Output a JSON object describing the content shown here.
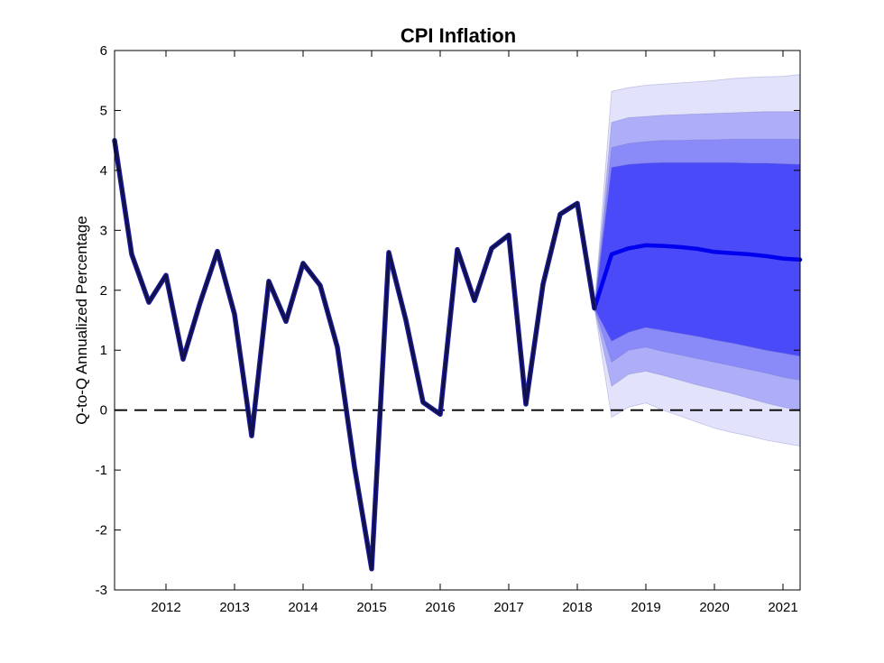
{
  "chart_data": {
    "type": "line",
    "title": "CPI Inflation",
    "xlabel": "",
    "ylabel": "Q-to-Q Annualized Percentage",
    "xlim": [
      2011.25,
      2021.25
    ],
    "ylim": [
      -3,
      6
    ],
    "yticks": [
      -3,
      -2,
      -1,
      0,
      1,
      2,
      3,
      4,
      5,
      6
    ],
    "xticks": [
      2012,
      2013,
      2014,
      2015,
      2016,
      2017,
      2018,
      2019,
      2020,
      2021
    ],
    "grid": false,
    "reference_line": {
      "y": 0,
      "style": "dashed",
      "color": "#000000"
    },
    "colors": {
      "history": "#10104a",
      "forecast": "#0000ee",
      "band_outer": "#e2e2fb",
      "band_3": "#aeaef8",
      "band_2": "#8a8af8",
      "band_inner": "#4a4af8"
    },
    "series": [
      {
        "kind": "history",
        "x": [
          2011.25,
          2011.5,
          2011.75,
          2012.0,
          2012.25,
          2012.5,
          2012.75,
          2013.0,
          2013.25,
          2013.5,
          2013.75,
          2014.0,
          2014.25,
          2014.5,
          2014.75,
          2015.0,
          2015.25,
          2015.5,
          2015.75,
          2016.0,
          2016.25,
          2016.5,
          2016.75,
          2017.0,
          2017.25,
          2017.5,
          2017.75,
          2018.0,
          2018.25
        ],
        "values": [
          4.5,
          2.6,
          1.8,
          2.25,
          0.85,
          1.8,
          2.65,
          1.6,
          -0.43,
          2.15,
          1.48,
          2.45,
          2.08,
          1.05,
          -0.95,
          -2.65,
          2.63,
          1.5,
          0.13,
          -0.07,
          2.68,
          1.83,
          2.7,
          2.92,
          0.1,
          2.1,
          3.27,
          3.45,
          1.7
        ]
      },
      {
        "kind": "forecast",
        "x": [
          2017.75,
          2018.0,
          2018.25,
          2018.5,
          2018.75,
          2019.0,
          2019.25,
          2019.5,
          2019.75,
          2020.0,
          2020.25,
          2020.5,
          2020.75,
          2021.0,
          2021.25
        ],
        "values": [
          3.27,
          3.45,
          1.7,
          2.6,
          2.7,
          2.75,
          2.74,
          2.72,
          2.69,
          2.64,
          2.62,
          2.6,
          2.57,
          2.53,
          2.51
        ]
      }
    ],
    "bands": {
      "x": [
        2018.25,
        2018.5,
        2018.75,
        2019.0,
        2019.25,
        2019.5,
        2019.75,
        2020.0,
        2020.25,
        2020.5,
        2020.75,
        2021.0,
        2021.25
      ],
      "levels": [
        {
          "name": "outer",
          "lower": [
            1.7,
            -0.12,
            0.05,
            0.12,
            0.0,
            -0.1,
            -0.2,
            -0.3,
            -0.37,
            -0.43,
            -0.5,
            -0.55,
            -0.6
          ],
          "upper": [
            1.7,
            5.32,
            5.38,
            5.42,
            5.44,
            5.46,
            5.48,
            5.5,
            5.53,
            5.55,
            5.56,
            5.57,
            5.6
          ]
        },
        {
          "name": "band3",
          "lower": [
            1.7,
            0.4,
            0.6,
            0.65,
            0.58,
            0.5,
            0.42,
            0.35,
            0.28,
            0.2,
            0.12,
            0.05,
            0.0
          ],
          "upper": [
            1.7,
            4.8,
            4.88,
            4.9,
            4.92,
            4.93,
            4.94,
            4.95,
            4.96,
            4.97,
            4.98,
            4.98,
            4.98
          ]
        },
        {
          "name": "band2",
          "lower": [
            1.7,
            0.8,
            1.0,
            1.05,
            0.98,
            0.92,
            0.86,
            0.8,
            0.74,
            0.68,
            0.62,
            0.55,
            0.5
          ],
          "upper": [
            1.7,
            4.38,
            4.45,
            4.48,
            4.5,
            4.5,
            4.51,
            4.51,
            4.52,
            4.52,
            4.52,
            4.52,
            4.52
          ]
        },
        {
          "name": "inner",
          "lower": [
            1.7,
            1.15,
            1.3,
            1.38,
            1.33,
            1.28,
            1.23,
            1.17,
            1.12,
            1.06,
            1.0,
            0.95,
            0.9
          ],
          "upper": [
            1.7,
            4.05,
            4.1,
            4.12,
            4.13,
            4.13,
            4.13,
            4.13,
            4.13,
            4.12,
            4.12,
            4.11,
            4.1
          ]
        }
      ]
    }
  }
}
